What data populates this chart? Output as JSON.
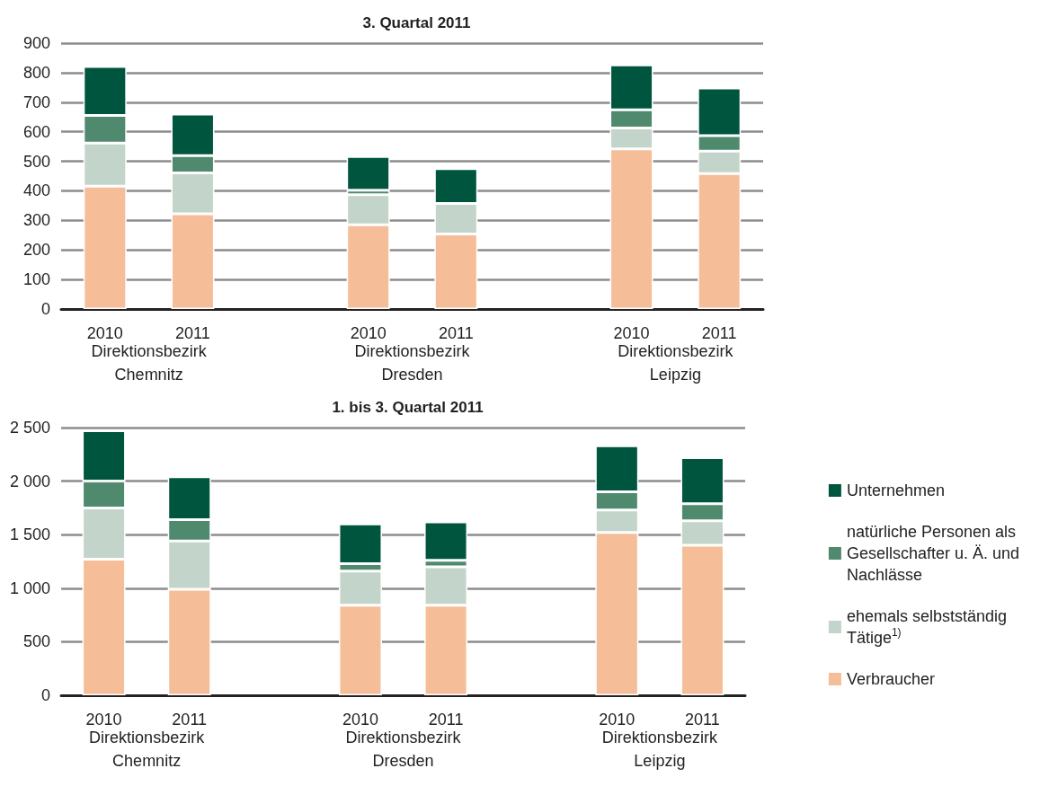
{
  "chart_data": [
    {
      "type": "bar",
      "title": "3. Quartal 2011",
      "stacked": true,
      "categories": [
        "2010",
        "2011",
        null,
        "2010",
        "2011",
        null,
        "2010",
        "2011"
      ],
      "series": [
        {
          "color": "#f6be98",
          "values": [
            416,
            322,
            null,
            285,
            254,
            null,
            542,
            458
          ]
        },
        {
          "color": "#c3d5ca",
          "values": [
            146,
            139,
            null,
            102,
            103,
            null,
            71,
            76
          ]
        },
        {
          "color": "#4f8a6e",
          "values": [
            93,
            58,
            null,
            15,
            null,
            null,
            61,
            53
          ]
        },
        {
          "color": "#00553f",
          "values": [
            166,
            141,
            null,
            114,
            118,
            null,
            152,
            161
          ]
        }
      ],
      "annotations": [
        "Direktionsbezirk\nChemnitz",
        "Direktionsbezirk\nDresden",
        "Direktionsbezirk\nLeipzig"
      ],
      "ylim": [
        0,
        900
      ],
      "yticks": [
        0,
        100,
        200,
        300,
        400,
        500,
        600,
        700,
        800,
        900
      ],
      "grid": "y",
      "legend": false
    },
    {
      "type": "bar",
      "title": "1. bis 3. Quartal 2011",
      "stacked": true,
      "categories": [
        "2010",
        "2011",
        null,
        "2010",
        "2011",
        null,
        "2010",
        "2011"
      ],
      "series": [
        {
          "name": "Verbraucher",
          "color": "#f6be98",
          "values": [
            1270,
            990,
            null,
            840,
            840,
            null,
            1520,
            1400
          ]
        },
        {
          "name": "ehemals selbstständig Tätige$^{1)}$",
          "color": "#c3d5ca",
          "values": [
            480,
            450,
            null,
            320,
            360,
            null,
            210,
            230
          ]
        },
        {
          "name": "natürliche Personen als Gesellschafter u. Ä. und Nachlässe",
          "color": "#4f8a6e",
          "values": [
            250,
            200,
            null,
            70,
            60,
            null,
            170,
            160
          ]
        },
        {
          "name": "Unternehmen",
          "color": "#00553f",
          "values": [
            470,
            400,
            null,
            370,
            360,
            null,
            430,
            430
          ]
        }
      ],
      "annotations": [
        "Direktionsbezirk\nChemnitz",
        "Direktionsbezirk\nDresden",
        "Direktionsbezirk\nLeipzig"
      ],
      "ylim": [
        0,
        2500
      ],
      "yticks": [
        0,
        500,
        {
          "value": 1000,
          "label": "1 000"
        },
        {
          "value": 1500,
          "label": "1 500"
        },
        {
          "value": 2000,
          "label": "2 000"
        },
        {
          "value": 2500,
          "label": "2 500"
        }
      ],
      "grid": "y",
      "legend": "right"
    }
  ]
}
